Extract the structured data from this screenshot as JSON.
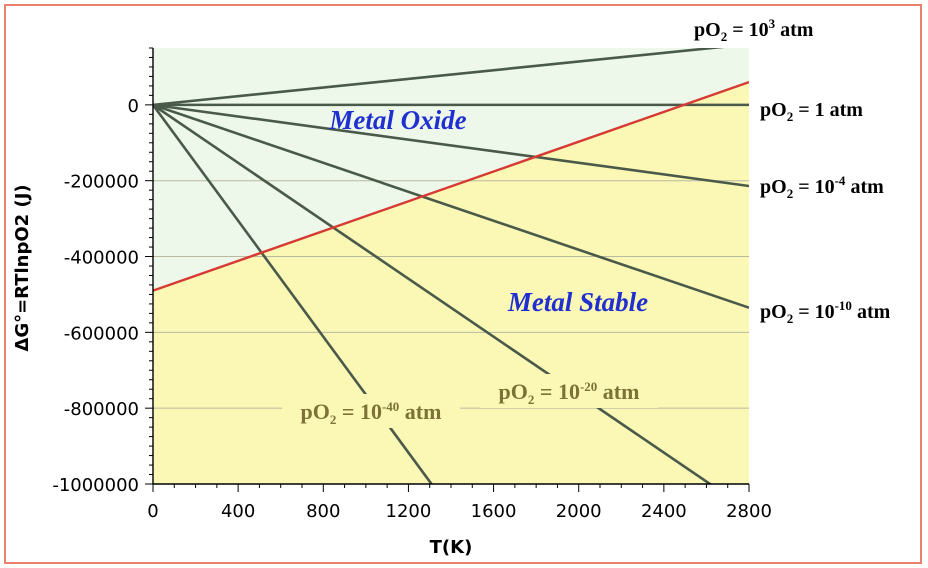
{
  "chart_data": {
    "type": "line",
    "xlabel": "T(K)",
    "ylabel": "ΔG°=RTlnpO2 (J)",
    "xlim": [
      0,
      2800
    ],
    "ylim": [
      -1000000,
      150000
    ],
    "x_ticks": [
      "0",
      "400",
      "800",
      "1200",
      "1600",
      "2000",
      "2400",
      "2800"
    ],
    "y_ticks": [
      "0",
      "-200000",
      "-400000",
      "-600000",
      "-800000",
      "-1000000"
    ],
    "y_tick_values": [
      0,
      -200000,
      -400000,
      -600000,
      -800000,
      -1000000
    ],
    "x_tick_values": [
      0,
      400,
      800,
      1200,
      1600,
      2000,
      2400,
      2800
    ],
    "grid": "horizontal",
    "regions": {
      "oxide": {
        "label": "Metal Oxide",
        "color": "#eef8ea"
      },
      "metal": {
        "label": "Metal Stable",
        "color": "#fbf7b5"
      }
    },
    "oxide_line": {
      "x": [
        0,
        2800
      ],
      "y": [
        -490000,
        60000
      ],
      "color": "#d63a33"
    },
    "series": [
      {
        "name": "pO2 = 10^3 atm",
        "x": [
          0,
          2800
        ],
        "y": [
          0,
          160000
        ],
        "color": "#4a5a4a"
      },
      {
        "name": "pO2 = 1 atm",
        "x": [
          0,
          2800
        ],
        "y": [
          0,
          0
        ],
        "color": "#4a5a4a"
      },
      {
        "name": "pO2 = 10^-4 atm",
        "x": [
          0,
          2800
        ],
        "y": [
          0,
          -214000
        ],
        "color": "#4a5a4a"
      },
      {
        "name": "pO2 = 10^-10 atm",
        "x": [
          0,
          2800
        ],
        "y": [
          0,
          -535000
        ],
        "color": "#4a5a4a"
      },
      {
        "name": "pO2 = 10^-20 atm",
        "x": [
          0,
          2800
        ],
        "y": [
          0,
          -1070000
        ],
        "color": "#4a5a4a"
      },
      {
        "name": "pO2 = 10^-40 atm",
        "x": [
          0,
          1400
        ],
        "y": [
          0,
          -1070000
        ],
        "color": "#4a5a4a"
      }
    ],
    "line_labels": [
      {
        "base": "pO",
        "sub": "2",
        "mid": " = 10",
        "sup": "3",
        "tail": " atm",
        "style": "black"
      },
      {
        "base": "pO",
        "sub": "2",
        "mid": " = 1 atm",
        "sup": "",
        "tail": "",
        "style": "black"
      },
      {
        "base": "pO",
        "sub": "2",
        "mid": " = 10",
        "sup": "-4",
        "tail": " atm",
        "style": "black"
      },
      {
        "base": "pO",
        "sub": "2",
        "mid": " = 10",
        "sup": "-10",
        "tail": " atm",
        "style": "black"
      },
      {
        "base": "pO",
        "sub": "2",
        "mid": " = 10",
        "sup": "-20",
        "tail": " atm",
        "style": "olive"
      },
      {
        "base": "pO",
        "sub": "2",
        "mid": " = 10",
        "sup": "-40",
        "tail": " atm",
        "style": "olive"
      }
    ]
  }
}
